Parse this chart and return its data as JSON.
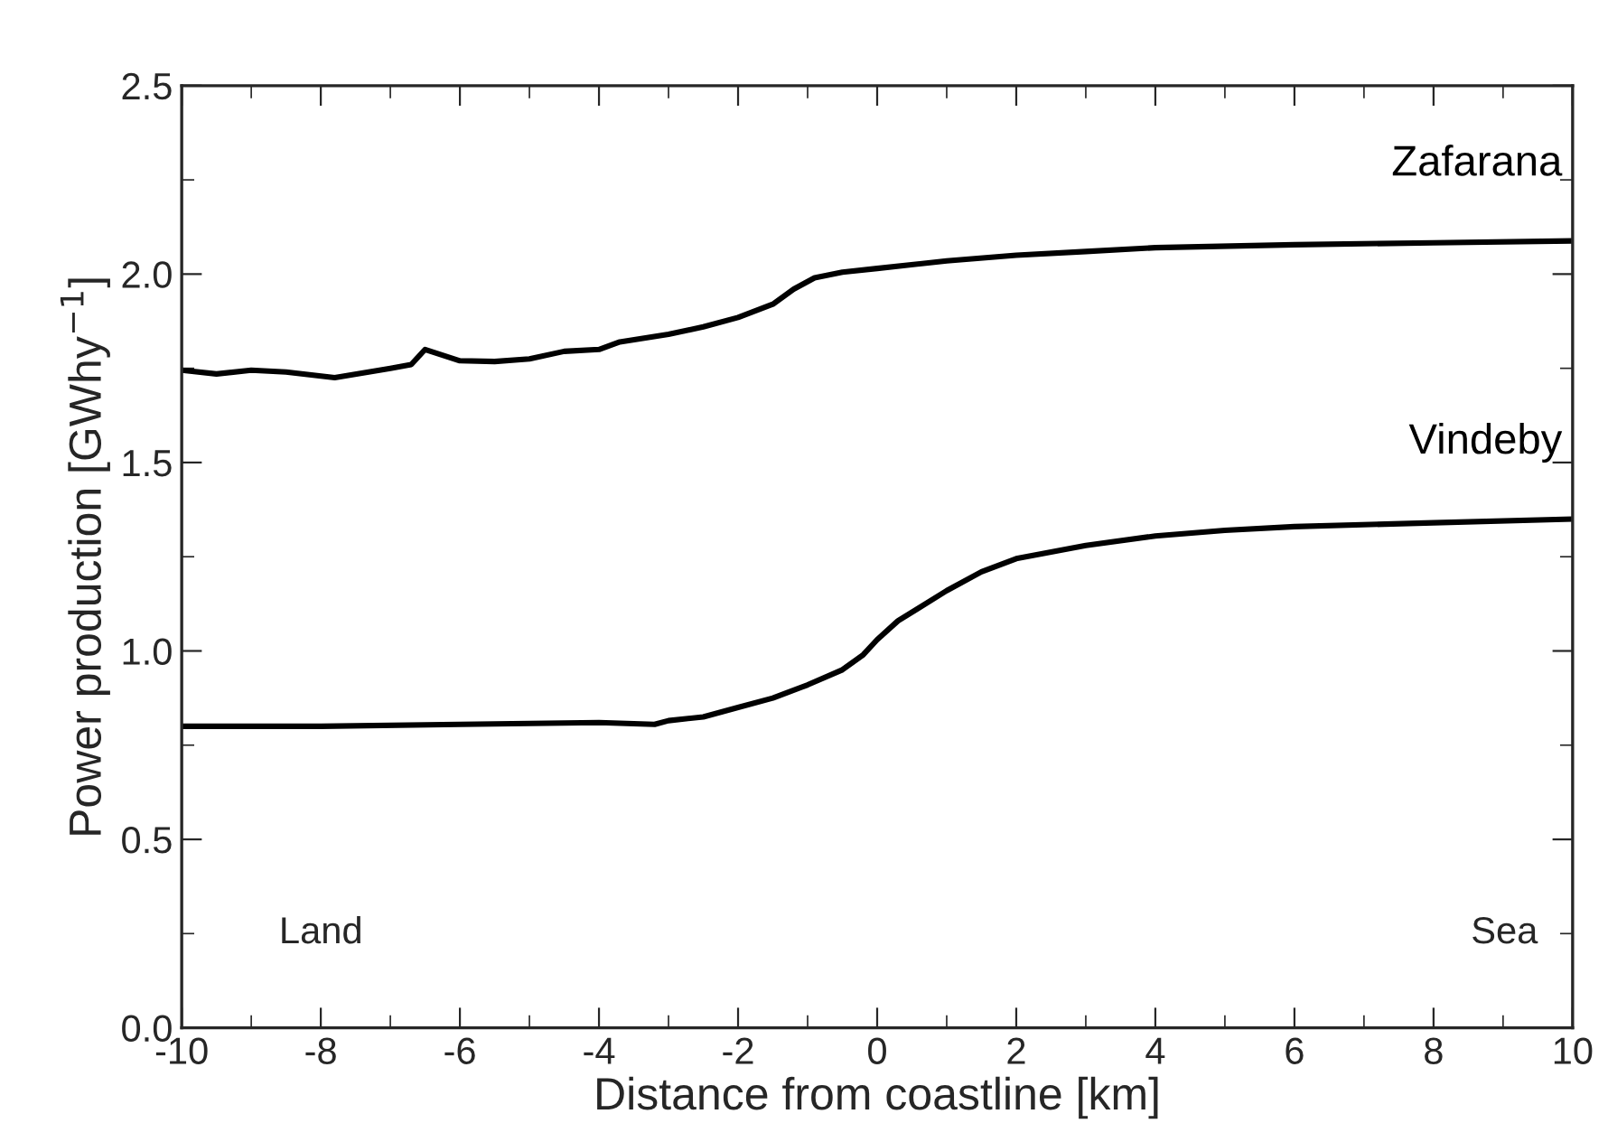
{
  "chart_data": {
    "type": "line",
    "xlabel": "Distance from coastline [km]",
    "ylabel": "Power production [GWhy$^{−1}$]",
    "annotations": [
      "Land",
      "Sea"
    ],
    "xlim": [
      -10,
      10
    ],
    "xticks": [
      {
        "value": -10,
        "label": "-10"
      },
      {
        "value": -8,
        "label": "-8"
      },
      {
        "value": -6,
        "label": "-6"
      },
      {
        "value": -4,
        "label": "-4"
      },
      {
        "value": -2,
        "label": "-2"
      },
      0,
      2,
      4,
      6,
      8,
      10
    ],
    "ylim": [
      0,
      2.5
    ],
    "yticks": [
      {
        "value": 0,
        "label": "0.0"
      },
      0.5,
      {
        "value": 1,
        "label": "1.0"
      },
      1.5,
      {
        "value": 2,
        "label": "2.0"
      },
      2.5
    ],
    "grid": false,
    "legend": false,
    "marker": "none",
    "line_style": "solid",
    "series": [
      {
        "name": "Zafarana",
        "color": "#000000",
        "x": [
          -10,
          -9.5,
          -9,
          -8.5,
          -7.8,
          -7,
          -6.7,
          -6.5,
          -6,
          -5.5,
          -5,
          -4.5,
          -4,
          -3.7,
          -3,
          -2.5,
          -2,
          -1.5,
          -1.2,
          -0.9,
          -0.5,
          0,
          1,
          2,
          3,
          4,
          6,
          8,
          10
        ],
        "values": [
          1.745,
          1.735,
          1.745,
          1.74,
          1.725,
          1.75,
          1.76,
          1.8,
          1.77,
          1.768,
          1.775,
          1.795,
          1.8,
          1.82,
          1.84,
          1.86,
          1.885,
          1.92,
          1.96,
          1.99,
          2.005,
          2.015,
          2.035,
          2.05,
          2.06,
          2.07,
          2.078,
          2.083,
          2.088
        ]
      },
      {
        "name": "Vindeby",
        "color": "#000000",
        "x": [
          -10,
          -8,
          -6,
          -4,
          -3.2,
          -3,
          -2.5,
          -2,
          -1.5,
          -1,
          -0.5,
          -0.2,
          0,
          0.3,
          1,
          1.5,
          2,
          3,
          4,
          5,
          6,
          8,
          10
        ],
        "values": [
          0.8,
          0.8,
          0.805,
          0.81,
          0.805,
          0.815,
          0.825,
          0.85,
          0.875,
          0.91,
          0.95,
          0.99,
          1.03,
          1.08,
          1.16,
          1.21,
          1.245,
          1.28,
          1.305,
          1.32,
          1.33,
          1.34,
          1.35
        ]
      }
    ]
  }
}
